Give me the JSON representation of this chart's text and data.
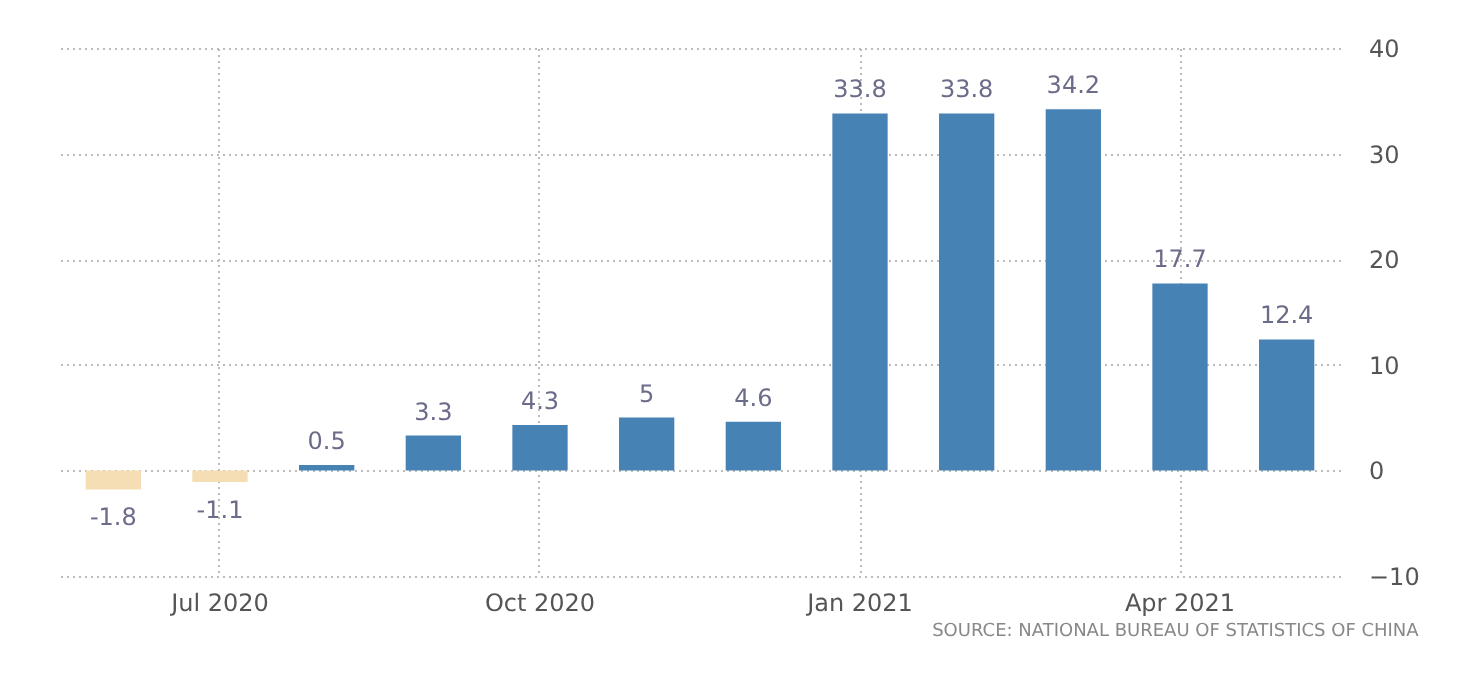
{
  "chart_data": {
    "type": "bar",
    "categories": [
      null,
      "Jul 2020",
      null,
      null,
      "Oct 2020",
      null,
      null,
      "Jan 2021",
      null,
      null,
      "Apr 2021",
      null
    ],
    "values": [
      -1.8,
      -1.1,
      0.5,
      3.3,
      4.3,
      5,
      4.6,
      33.8,
      33.8,
      34.2,
      17.7,
      12.4
    ],
    "colors": [
      "#f5deb3",
      "#f5deb3",
      "#4682b4",
      "#4682b4",
      "#4682b4",
      "#4682b4",
      "#4682b4",
      "#4682b4",
      "#4682b4",
      "#4682b4",
      "#4682b4",
      "#4682b4"
    ],
    "ylim": [
      -10,
      40
    ],
    "yticks": [
      -10,
      0,
      10,
      20,
      30,
      40
    ],
    "grid": true,
    "data_labels": true,
    "annotations": [
      "SOURCE: NATIONAL BUREAU OF STATISTICS OF CHINA"
    ]
  }
}
